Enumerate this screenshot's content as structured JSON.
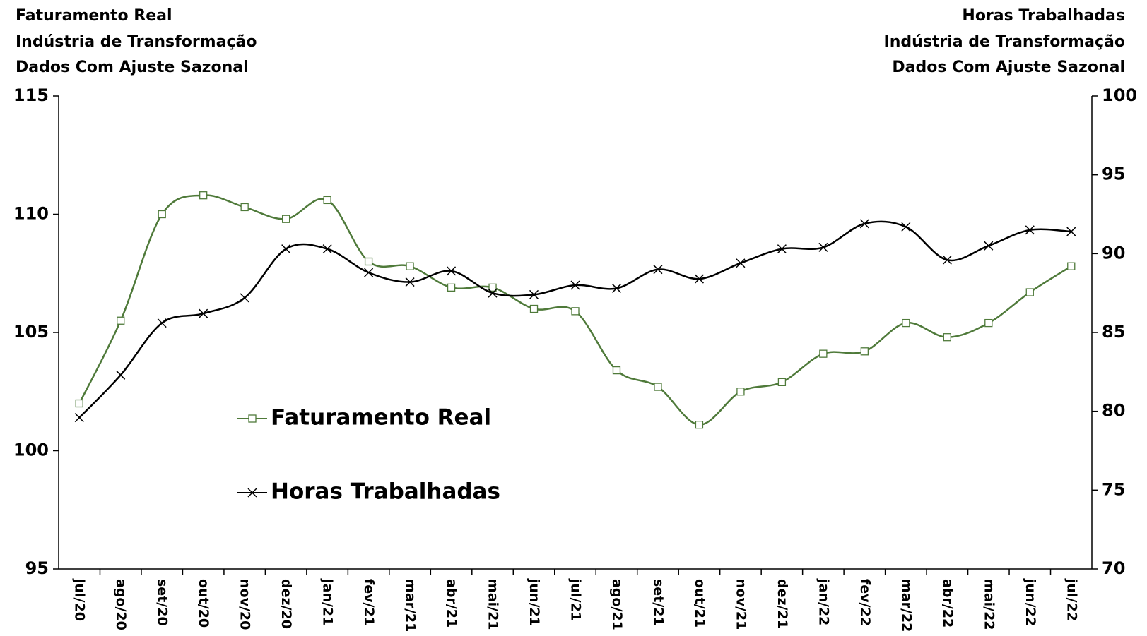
{
  "chart_data": {
    "type": "line",
    "title_left": [
      "Faturamento Real",
      "Indústria de Transformação",
      "Dados Com Ajuste Sazonal"
    ],
    "title_right": [
      "Horas Trabalhadas",
      "Indústria de Transformação",
      "Dados Com Ajuste Sazonal"
    ],
    "categories": [
      "jul/20",
      "ago/20",
      "set/20",
      "out/20",
      "nov/20",
      "dez/20",
      "jan/21",
      "fev/21",
      "mar/21",
      "abr/21",
      "mai/21",
      "jun/21",
      "jul/21",
      "ago/21",
      "set/21",
      "out/21",
      "nov/21",
      "dez/21",
      "jan/22",
      "fev/22",
      "mar/22",
      "abr/22",
      "mai/22",
      "jun/22",
      "jul/22"
    ],
    "series": [
      {
        "name": "Faturamento Real",
        "color": "#4f7a3a",
        "marker": "square",
        "axis": "y",
        "values": [
          102.0,
          105.5,
          110.0,
          110.8,
          110.3,
          109.8,
          110.6,
          108.0,
          107.8,
          106.9,
          106.9,
          106.0,
          105.9,
          103.4,
          102.7,
          101.1,
          102.5,
          102.9,
          104.1,
          104.2,
          105.4,
          104.8,
          105.4,
          106.7,
          107.8
        ]
      },
      {
        "name": "Horas Trabalhadas",
        "color": "#000000",
        "marker": "x",
        "axis": "y2",
        "values": [
          79.6,
          82.3,
          85.6,
          86.2,
          87.2,
          90.3,
          90.3,
          88.8,
          88.2,
          88.9,
          87.5,
          87.4,
          88.0,
          87.8,
          89.0,
          88.4,
          89.4,
          90.3,
          90.4,
          91.9,
          91.7,
          89.6,
          90.5,
          91.5,
          91.4
        ]
      }
    ],
    "ylim": [
      95,
      115
    ],
    "yticks": [
      95,
      100,
      105,
      110,
      115
    ],
    "y2lim": [
      70,
      100
    ],
    "y2ticks": [
      70,
      75,
      80,
      85,
      90,
      95,
      100
    ],
    "smooth": true,
    "grid": false
  }
}
